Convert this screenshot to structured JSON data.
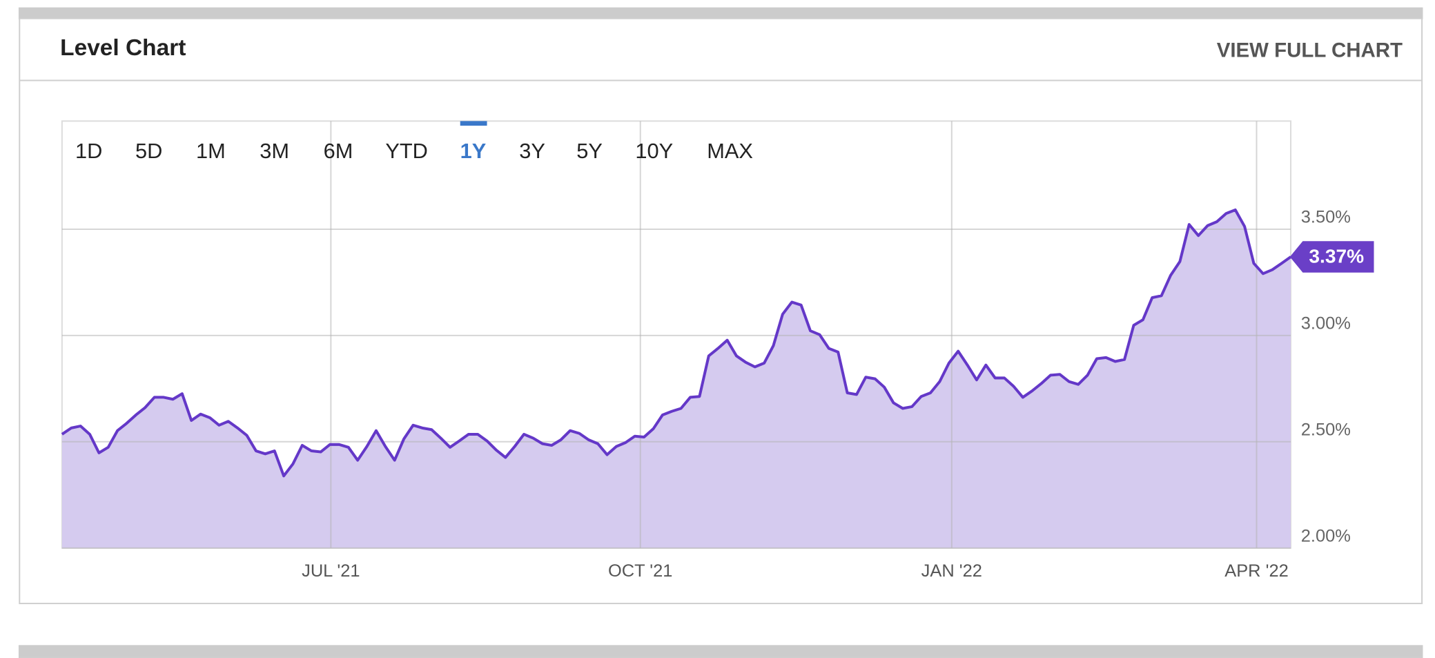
{
  "header": {
    "title": "Level Chart",
    "link": "VIEW FULL CHART"
  },
  "ranges": [
    "1D",
    "5D",
    "1M",
    "3M",
    "6M",
    "YTD",
    "1Y",
    "3Y",
    "5Y",
    "10Y",
    "MAX"
  ],
  "active_range": "1Y",
  "chart_data": {
    "type": "area",
    "color": "#6438c8",
    "fill": "#d5cbef",
    "grid": true,
    "values": [
      2.535,
      2.565,
      2.574,
      2.535,
      2.448,
      2.474,
      2.552,
      2.587,
      2.626,
      2.661,
      2.709,
      2.709,
      2.7,
      2.726,
      2.6,
      2.63,
      2.613,
      2.578,
      2.596,
      2.565,
      2.53,
      2.457,
      2.443,
      2.457,
      2.339,
      2.396,
      2.483,
      2.457,
      2.452,
      2.487,
      2.487,
      2.474,
      2.413,
      2.478,
      2.552,
      2.478,
      2.413,
      2.513,
      2.578,
      2.565,
      2.557,
      2.517,
      2.474,
      2.504,
      2.535,
      2.535,
      2.504,
      2.461,
      2.426,
      2.478,
      2.535,
      2.517,
      2.491,
      2.483,
      2.509,
      2.552,
      2.539,
      2.509,
      2.491,
      2.439,
      2.478,
      2.496,
      2.526,
      2.522,
      2.561,
      2.626,
      2.643,
      2.657,
      2.709,
      2.713,
      2.904,
      2.939,
      2.978,
      2.904,
      2.874,
      2.852,
      2.87,
      2.952,
      3.1,
      3.157,
      3.143,
      3.022,
      3.004,
      2.939,
      2.922,
      2.73,
      2.722,
      2.804,
      2.796,
      2.757,
      2.683,
      2.657,
      2.665,
      2.713,
      2.73,
      2.783,
      2.87,
      2.926,
      2.861,
      2.791,
      2.861,
      2.8,
      2.8,
      2.761,
      2.709,
      2.739,
      2.774,
      2.813,
      2.817,
      2.783,
      2.77,
      2.813,
      2.891,
      2.896,
      2.878,
      2.887,
      3.048,
      3.074,
      3.178,
      3.187,
      3.283,
      3.348,
      3.522,
      3.47,
      3.517,
      3.535,
      3.574,
      3.591,
      3.513,
      3.339,
      3.291,
      3.309,
      3.339,
      3.37
    ],
    "value_labels": [
      null,
      null,
      null,
      null,
      null,
      null,
      null,
      null,
      null,
      null,
      null,
      null,
      null,
      null,
      null,
      null,
      null,
      null,
      null,
      null,
      null,
      null,
      null,
      null,
      null,
      null,
      null,
      null,
      null,
      null,
      null,
      null,
      null,
      null,
      null,
      null,
      null,
      null,
      null,
      null,
      null,
      null,
      null,
      null,
      null,
      null,
      null,
      null,
      null,
      null,
      null,
      null,
      null,
      null,
      null,
      null,
      null,
      null,
      null,
      null,
      null,
      null,
      null,
      null,
      null,
      null,
      null,
      null,
      null,
      null,
      null,
      null,
      null,
      null,
      null,
      null,
      null,
      null,
      null,
      null,
      null,
      null,
      null,
      null,
      null,
      null,
      null,
      null,
      null,
      null,
      null,
      null,
      null,
      null,
      null,
      null,
      null,
      null,
      null,
      null,
      null,
      null,
      null,
      null,
      null,
      null,
      null,
      null,
      null,
      null,
      null,
      null,
      null,
      null,
      null,
      null,
      null,
      null,
      null,
      null,
      null,
      null,
      null,
      null,
      null,
      null,
      null,
      null,
      null,
      null,
      null,
      null,
      null,
      "3.37%"
    ],
    "xlim": [
      0,
      133
    ],
    "xticks": [
      {
        "value": 29.1,
        "label": "JUL '21"
      },
      {
        "value": 62.6,
        "label": "OCT '21"
      },
      {
        "value": 96.3,
        "label": "JAN '22"
      },
      {
        "value": 129.3,
        "label": "APR '22"
      }
    ],
    "ylim": [
      2.0,
      4.0
    ],
    "yticks": [
      {
        "value": 2.0,
        "label": "2.00%"
      },
      {
        "value": 2.5,
        "label": "2.50%"
      },
      {
        "value": 3.0,
        "label": "3.00%"
      },
      {
        "value": 3.5,
        "label": "3.50%"
      }
    ]
  }
}
